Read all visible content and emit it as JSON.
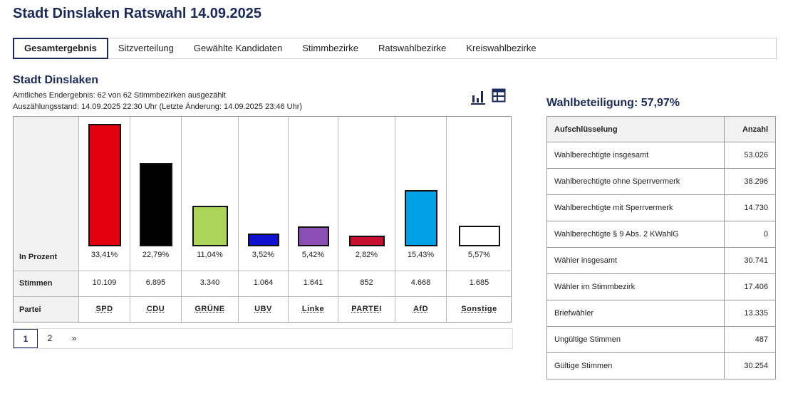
{
  "title": "Stadt Dinslaken Ratswahl 14.09.2025",
  "tabs": [
    "Gesamtergebnis",
    "Sitzverteilung",
    "Gewählte Kandidaten",
    "Stimmbezirke",
    "Ratswahlbezirke",
    "Kreiswahlbezirke"
  ],
  "section": {
    "title": "Stadt Dinslaken",
    "line1": "Amtliches Endergebnis: 62 von 62 Stimmbezirken ausgezählt",
    "line2": "Auszählungsstand: 14.09.2025 22:30 Uhr (Letzte Änderung: 14.09.2025 23:46 Uhr)"
  },
  "view_icons": [
    "bar-chart-icon",
    "table-icon"
  ],
  "chart_data": {
    "type": "bar",
    "row_labels": {
      "percent": "In Prozent",
      "votes": "Stimmen",
      "party": "Partei"
    },
    "categories": [
      "SPD",
      "CDU",
      "GRÜNE",
      "UBV",
      "Linke",
      "PARTEI",
      "AfD",
      "Sonstige"
    ],
    "values": [
      33.41,
      22.79,
      11.04,
      3.52,
      5.42,
      2.82,
      15.43,
      5.57
    ],
    "percent_labels": [
      "33,41%",
      "22,79%",
      "11,04%",
      "3,52%",
      "5,42%",
      "2,82%",
      "15,43%",
      "5,57%"
    ],
    "votes": [
      "10.109",
      "6.895",
      "3.340",
      "1.064",
      "1.641",
      "852",
      "4.668",
      "1.685"
    ],
    "colors": [
      "#e3000f",
      "#000000",
      "#acd35a",
      "#1010d0",
      "#8b4fb5",
      "#c8102e",
      "#00a0e6",
      "#ffffff"
    ]
  },
  "pagination": [
    "1",
    "2",
    "»"
  ],
  "turnout": {
    "title": "Wahlbeteiligung: 57,97%",
    "headers": [
      "Aufschlüsselung",
      "Anzahl"
    ],
    "rows": [
      [
        "Wahlberechtigte insgesamt",
        "53.026"
      ],
      [
        "Wahlberechtigte ohne Sperrvermerk",
        "38.296"
      ],
      [
        "Wahlberechtigte mit Sperrvermerk",
        "14.730"
      ],
      [
        "Wahlberechtigte § 9 Abs. 2 KWahlG",
        "0"
      ],
      [
        "Wähler insgesamt",
        "30.741"
      ],
      [
        "Wähler im Stimmbezirk",
        "17.406"
      ],
      [
        "Briefwähler",
        "13.335"
      ],
      [
        "Ungültige Stimmen",
        "487"
      ],
      [
        "Gültige Stimmen",
        "30.254"
      ]
    ]
  }
}
